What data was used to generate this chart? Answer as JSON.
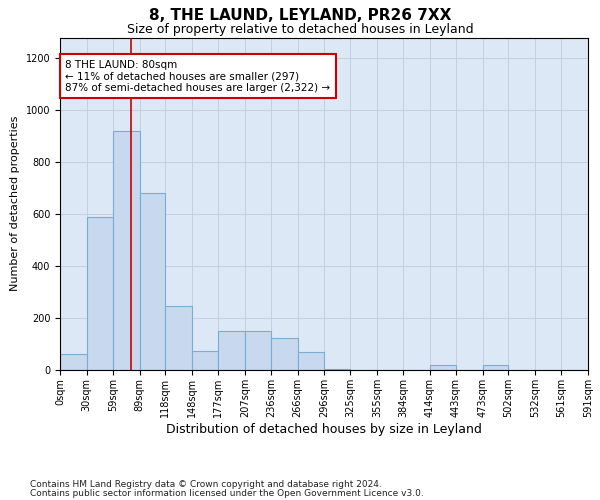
{
  "title": "8, THE LAUND, LEYLAND, PR26 7XX",
  "subtitle": "Size of property relative to detached houses in Leyland",
  "xlabel": "Distribution of detached houses by size in Leyland",
  "ylabel": "Number of detached properties",
  "footnote1": "Contains HM Land Registry data © Crown copyright and database right 2024.",
  "footnote2": "Contains public sector information licensed under the Open Government Licence v3.0.",
  "annotation_line1": "8 THE LAUND: 80sqm",
  "annotation_line2": "← 11% of detached houses are smaller (297)",
  "annotation_line3": "87% of semi-detached houses are larger (2,322) →",
  "property_size": 80,
  "bin_edges": [
    0,
    30,
    59,
    89,
    118,
    148,
    177,
    207,
    236,
    266,
    296,
    325,
    355,
    384,
    414,
    443,
    473,
    502,
    532,
    561,
    591
  ],
  "bar_heights": [
    60,
    590,
    920,
    680,
    245,
    75,
    150,
    150,
    125,
    70,
    5,
    0,
    0,
    0,
    20,
    0,
    18,
    0,
    0,
    0
  ],
  "bar_color": "#c8d8ee",
  "bar_edge_color": "#7aadd4",
  "vline_color": "#cc0000",
  "vline_x": 80,
  "ylim": [
    0,
    1280
  ],
  "yticks": [
    0,
    200,
    400,
    600,
    800,
    1000,
    1200
  ],
  "ax_facecolor": "#dce8f5",
  "background_color": "#ffffff",
  "grid_color": "#c0ccd8",
  "annotation_box_facecolor": "#ffffff",
  "annotation_box_edgecolor": "#cc0000",
  "title_fontsize": 11,
  "subtitle_fontsize": 9,
  "xlabel_fontsize": 9,
  "ylabel_fontsize": 8,
  "tick_fontsize": 7,
  "annotation_fontsize": 7.5,
  "footnote_fontsize": 6.5
}
